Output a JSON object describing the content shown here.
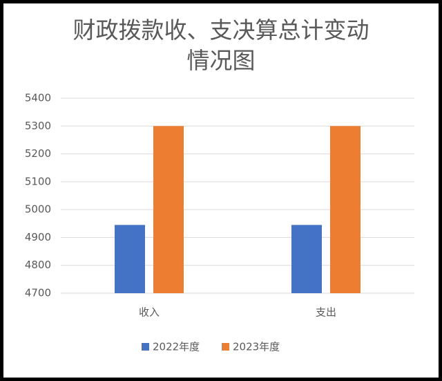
{
  "chart_data": {
    "type": "bar",
    "title": "财政拨款收、支决算总计变动情况图",
    "categories": [
      "收入",
      "支出"
    ],
    "series": [
      {
        "name": "2022年度",
        "color": "#4472c4",
        "values": [
          4945,
          4945
        ]
      },
      {
        "name": "2023年度",
        "color": "#ed7d31",
        "values": [
          5300,
          5300
        ]
      }
    ],
    "ylim": [
      4700,
      5400
    ],
    "yticks": [
      4700,
      4800,
      4900,
      5000,
      5100,
      5200,
      5300,
      5400
    ],
    "grid": true,
    "legend": "bottom"
  }
}
